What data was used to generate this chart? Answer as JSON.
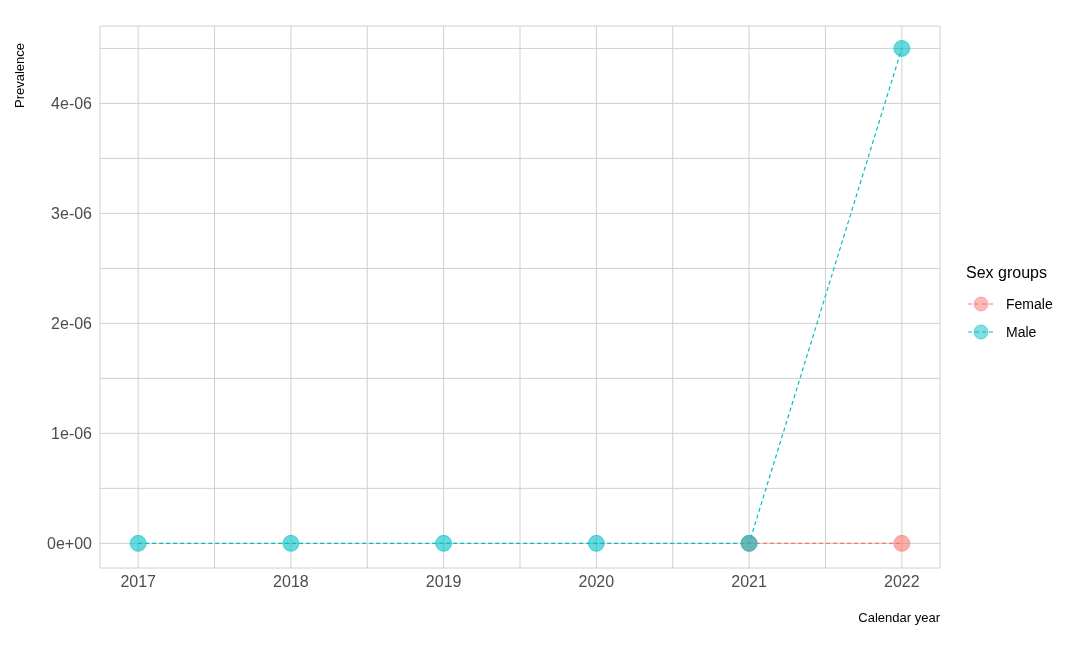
{
  "chart_data": {
    "type": "line",
    "xlabel": "Calendar year",
    "ylabel": "Prevalence",
    "legend_title": "Sex groups",
    "x": [
      2017,
      2018,
      2019,
      2020,
      2021,
      2022
    ],
    "series": [
      {
        "name": "Female",
        "color": "#f8766d",
        "values": [
          null,
          null,
          null,
          null,
          0,
          0
        ]
      },
      {
        "name": "Male",
        "color": "#00bfc4",
        "values": [
          0,
          0,
          0,
          0,
          0,
          4.5e-06
        ]
      }
    ],
    "xlim": [
      2016.75,
      2022.25
    ],
    "xticks": [
      2017,
      {
        "value": 2017.5,
        "label": null
      },
      2018,
      {
        "value": 2018.5,
        "label": null
      },
      2019,
      {
        "value": 2019.5,
        "label": null
      },
      2020,
      {
        "value": 2020.5,
        "label": null
      },
      2021,
      {
        "value": 2021.5,
        "label": null
      },
      2022
    ],
    "ylim": [
      -2.24e-07,
      4.704e-06
    ],
    "yticks": [
      {
        "value": 0,
        "label": "0e+00"
      },
      {
        "value": 5e-07,
        "label": null
      },
      {
        "value": 1e-06,
        "label": "1e-06"
      },
      {
        "value": 1.5e-06,
        "label": null
      },
      {
        "value": 2e-06,
        "label": "2e-06"
      },
      {
        "value": 2.5e-06,
        "label": null
      },
      {
        "value": 3e-06,
        "label": "3e-06"
      },
      {
        "value": 3.5e-06,
        "label": null
      },
      {
        "value": 4e-06,
        "label": "4e-06"
      },
      {
        "value": 4.5e-06,
        "label": null
      }
    ],
    "grid": true,
    "legend": "right",
    "marker": "circle",
    "line_style": "dashed"
  }
}
